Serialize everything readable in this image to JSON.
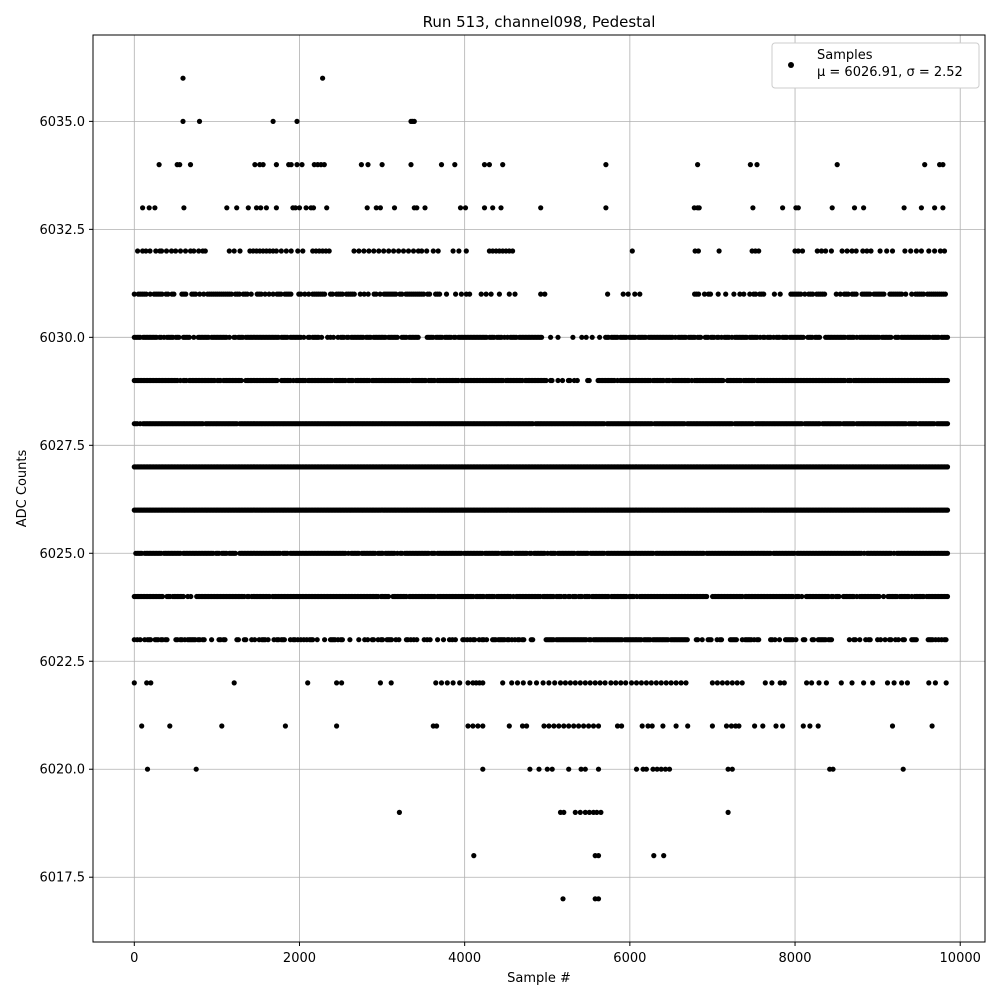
{
  "chart_data": {
    "type": "scatter",
    "title": "Run 513, channel098, Pedestal",
    "xlabel": "Sample #",
    "ylabel": "ADC Counts",
    "xlim": [
      -500,
      10300
    ],
    "ylim": [
      6016,
      6037
    ],
    "xticks": [
      0,
      2000,
      4000,
      6000,
      8000,
      10000
    ],
    "xtick_labels": [
      "0",
      "2000",
      "4000",
      "6000",
      "8000",
      "10000"
    ],
    "yticks": [
      6017.5,
      6020.0,
      6022.5,
      6025.0,
      6027.5,
      6030.0,
      6032.5,
      6035.0
    ],
    "ytick_labels": [
      "6017.5",
      "6020.0",
      "6022.5",
      "6025.0",
      "6027.5",
      "6030.0",
      "6032.5",
      "6035.0"
    ],
    "grid": true,
    "legend_position": "top-right",
    "legend": {
      "name": "Samples",
      "stats": "μ = 6026.91, σ = 2.52"
    },
    "marker_color": "#000000",
    "n_samples": 9850,
    "series": [
      {
        "name": "Samples",
        "levels": [
          {
            "y": 6036,
            "x": [
              590,
              2280
            ]
          },
          {
            "y": 6035,
            "x": [
              590,
              790,
              1680,
              1970,
              3350,
              3370,
              3390
            ]
          },
          {
            "y": 6034,
            "x": [
              300,
              520,
              550,
              680,
              1460,
              1520,
              1560,
              1720,
              1870,
              1900,
              1970,
              2030,
              2180,
              2220,
              2260,
              2300,
              2750,
              2830,
              3000,
              3350,
              3720,
              3880,
              4240,
              4300,
              4460,
              5710,
              6820,
              7460,
              7540,
              8510,
              9570,
              9750,
              9790
            ]
          },
          {
            "y": 6033,
            "x": [
              100,
              180,
              250,
              600,
              1120,
              1240,
              1380,
              1480,
              1530,
              1600,
              1720,
              1920,
              1950,
              2000,
              2080,
              2140,
              2170,
              2330,
              2820,
              2930,
              2980,
              3150,
              3390,
              3420,
              3520,
              3950,
              4010,
              4240,
              4340,
              4440,
              4920,
              5710,
              6780,
              6820,
              6840,
              7490,
              7850,
              8010,
              8040,
              8450,
              8720,
              8830,
              9320,
              9530,
              9690,
              9790
            ]
          },
          {
            "y": 6032,
            "x": [
              40,
              100,
              140,
              190,
              260,
              310,
              330,
              390,
              450,
              500,
              560,
              620,
              680,
              720,
              780,
              830,
              860,
              1150,
              1210,
              1280,
              1400,
              1440,
              1480,
              1520,
              1560,
              1600,
              1640,
              1680,
              1720,
              1780,
              1840,
              1900,
              1980,
              2040,
              2160,
              2200,
              2240,
              2280,
              2320,
              2360,
              2660,
              2720,
              2780,
              2840,
              2900,
              2960,
              3020,
              3080,
              3140,
              3200,
              3260,
              3320,
              3380,
              3440,
              3480,
              3540,
              3620,
              3680,
              3860,
              3930,
              4020,
              4300,
              4340,
              4380,
              4420,
              4460,
              4500,
              4540,
              4580,
              6030,
              6790,
              6830,
              7080,
              7480,
              7520,
              7560,
              8000,
              8040,
              8090,
              8270,
              8320,
              8370,
              8440,
              8570,
              8630,
              8690,
              8740,
              8820,
              8870,
              8920,
              9030,
              9110,
              9180,
              9330,
              9400,
              9470,
              9530,
              9620,
              9690,
              9760,
              9810
            ]
          },
          {
            "y": 6031,
            "x": "sparse:0-3700,3780,3890,3960,4020,4060,4200,4260,4320,4420,4540,4610,4920,4970,5730,5920,5980,6060,6120,6760-7000,7070,7160,7260-7640,7750,7820,7950-8400,8500-9850"
          },
          {
            "y": 6030,
            "x": "dense"
          },
          {
            "y": 6029,
            "x": "dense"
          },
          {
            "y": 6028,
            "x": "dense"
          },
          {
            "y": 6027,
            "x": "dense"
          },
          {
            "y": 6026,
            "x": "dense"
          },
          {
            "y": 6025,
            "x": "dense"
          },
          {
            "y": 6024,
            "x": "dense"
          },
          {
            "y": 6023,
            "x": "sparse"
          },
          {
            "y": 6022,
            "x": [
              0,
              150,
              200,
              1210,
              2100,
              2450,
              2510,
              2980,
              3110,
              3650,
              3720,
              3790,
              3860,
              3940,
              4040,
              4100,
              4140,
              4180,
              4220,
              4460,
              4570,
              4640,
              4710,
              4790,
              4870,
              4950,
              5020,
              5090,
              5160,
              5220,
              5280,
              5340,
              5400,
              5460,
              5520,
              5580,
              5640,
              5700,
              5770,
              5830,
              5890,
              5950,
              6020,
              6080,
              6140,
              6200,
              6260,
              6320,
              6380,
              6440,
              6500,
              6560,
              6620,
              6680,
              7000,
              7060,
              7120,
              7180,
              7240,
              7300,
              7360,
              7640,
              7720,
              7820,
              7870,
              8140,
              8200,
              8290,
              8380,
              8560,
              8690,
              8830,
              8940,
              9120,
              9200,
              9290,
              9360,
              9620,
              9700,
              9830
            ]
          },
          {
            "y": 6021,
            "x": [
              90,
              430,
              1060,
              1830,
              2450,
              3620,
              3660,
              4040,
              4100,
              4160,
              4220,
              4540,
              4700,
              4750,
              4960,
              5020,
              5080,
              5140,
              5200,
              5260,
              5320,
              5380,
              5440,
              5500,
              5560,
              5620,
              5850,
              5900,
              6150,
              6220,
              6270,
              6400,
              6560,
              6700,
              7000,
              7170,
              7230,
              7280,
              7320,
              7510,
              7610,
              7770,
              7850,
              8100,
              8180,
              8280,
              9180,
              9660
            ]
          },
          {
            "y": 6020,
            "x": [
              160,
              750,
              4220,
              4790,
              4900,
              5000,
              5060,
              5260,
              5410,
              5460,
              5620,
              6080,
              6160,
              6200,
              6280,
              6330,
              6380,
              6430,
              6480,
              7190,
              7240,
              8420,
              8460,
              9310
            ]
          },
          {
            "y": 6019,
            "x": [
              3210,
              5160,
              5200,
              5340,
              5400,
              5460,
              5510,
              5560,
              5600,
              5650,
              7190
            ]
          },
          {
            "y": 6018,
            "x": [
              4110,
              5580,
              5620,
              6290,
              6410
            ]
          },
          {
            "y": 6017,
            "x": [
              5190,
              5580,
              5620
            ]
          }
        ]
      }
    ]
  }
}
